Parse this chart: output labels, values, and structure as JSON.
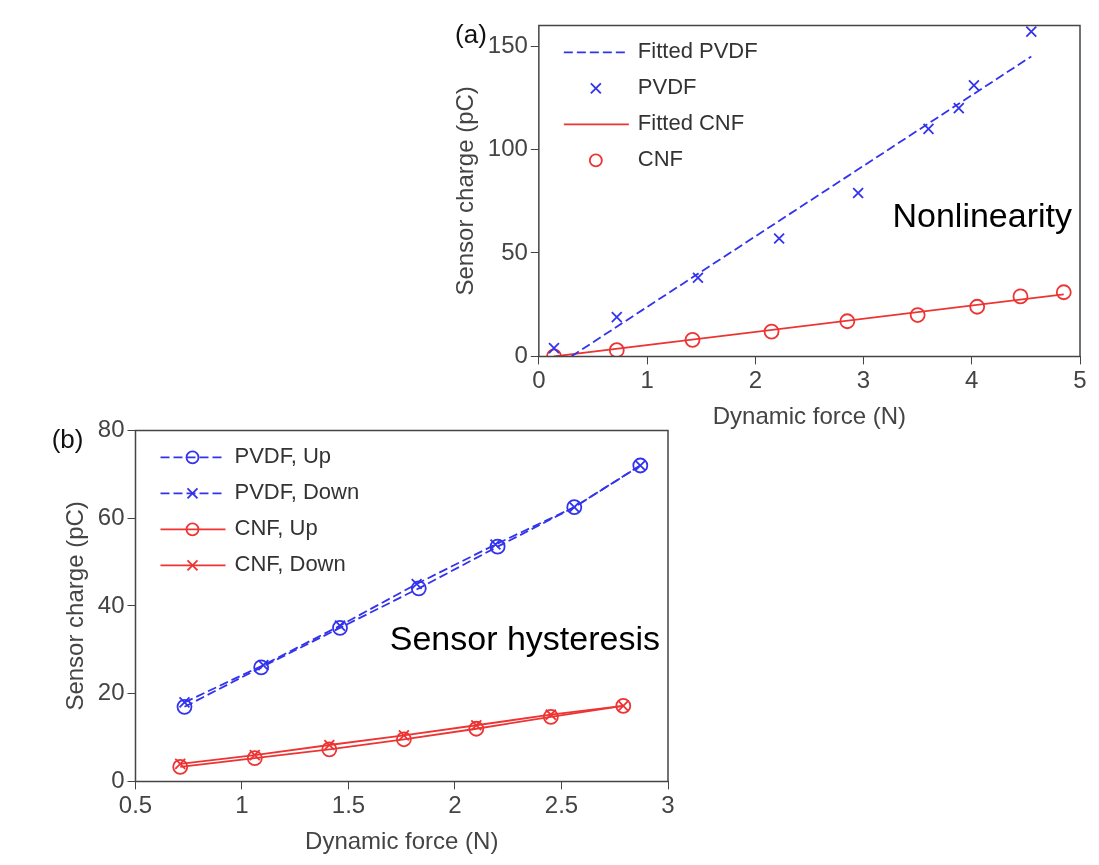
{
  "chart_data": [
    {
      "type": "scatter",
      "title": "(a)",
      "xlabel": "Dynamic force (N)",
      "ylabel": "Sensor charge (pC)",
      "xlim": [
        0,
        5
      ],
      "xticks": [
        0,
        1,
        2,
        3,
        4,
        5
      ],
      "ylim": [
        0,
        160
      ],
      "yticks": [
        0,
        50,
        100,
        150
      ],
      "grid": false,
      "legend": "top left",
      "annotations": [
        "Nonlinearity"
      ],
      "series": [
        {
          "name": "Fitted PVDF",
          "type": "line",
          "color": "#3333ee",
          "line_style": "dashed",
          "marker": "none",
          "x": [
            0.3,
            4.55
          ],
          "values": [
            0,
            145
          ]
        },
        {
          "name": "PVDF",
          "type": "scatter",
          "color": "#3333ee",
          "marker": "cross",
          "x": [
            0.14,
            0.72,
            1.47,
            2.22,
            2.95,
            3.6,
            3.88,
            4.02,
            4.55
          ],
          "values": [
            4,
            19,
            38,
            57,
            79,
            110,
            120,
            131,
            157
          ]
        },
        {
          "name": "Fitted CNF",
          "type": "line",
          "color": "#ee3333",
          "line_style": "solid",
          "marker": "none",
          "x": [
            0.14,
            4.85
          ],
          "values": [
            0,
            30
          ]
        },
        {
          "name": "CNF",
          "type": "scatter",
          "color": "#ee3333",
          "marker": "circle",
          "x": [
            0.14,
            0.72,
            1.42,
            2.15,
            2.85,
            3.5,
            4.05,
            4.45,
            4.85
          ],
          "values": [
            0,
            3,
            8,
            12,
            17,
            20,
            24,
            29,
            31
          ]
        }
      ]
    },
    {
      "type": "line",
      "title": "(b)",
      "xlabel": "Dynamic force (N)",
      "ylabel": "Sensor charge (pC)",
      "xlim": [
        0.5,
        3
      ],
      "xticks": [
        0.5,
        {
          "value": 1,
          "label": "1"
        },
        1.5,
        {
          "value": 2,
          "label": "2"
        },
        2.5,
        {
          "value": 3,
          "label": "3"
        }
      ],
      "ylim": [
        0,
        80
      ],
      "yticks": [
        0,
        20,
        40,
        60,
        80
      ],
      "grid": false,
      "legend": "top left",
      "annotations": [
        "Sensor hysteresis"
      ],
      "series": [
        {
          "name": "PVDF, Up",
          "color": "#3333ee",
          "line_style": "dashed",
          "marker": "circle",
          "x": [
            0.73,
            1.09,
            1.46,
            1.83,
            2.2,
            2.56,
            2.87
          ],
          "values": [
            17,
            26,
            35,
            44,
            53.5,
            62.5,
            72
          ]
        },
        {
          "name": "PVDF, Down",
          "color": "#3333ee",
          "line_style": "dashed",
          "marker": "cross",
          "x": [
            0.73,
            1.1,
            1.46,
            1.82,
            2.19,
            2.56,
            2.87
          ],
          "values": [
            18,
            26.5,
            35.5,
            45,
            54,
            62.5,
            72
          ]
        },
        {
          "name": "CNF, Up",
          "color": "#ee3333",
          "line_style": "solid",
          "marker": "circle",
          "x": [
            0.71,
            1.06,
            1.41,
            1.76,
            2.1,
            2.45,
            2.79
          ],
          "values": [
            3.3,
            5.3,
            7.3,
            9.6,
            12,
            14.7,
            17.2
          ]
        },
        {
          "name": "CNF, Down",
          "color": "#ee3333",
          "line_style": "solid",
          "marker": "cross",
          "x": [
            0.71,
            1.06,
            1.41,
            1.76,
            2.1,
            2.45,
            2.79
          ],
          "values": [
            4,
            6,
            8.3,
            10.5,
            12.8,
            15.2,
            17.2
          ]
        }
      ]
    }
  ]
}
